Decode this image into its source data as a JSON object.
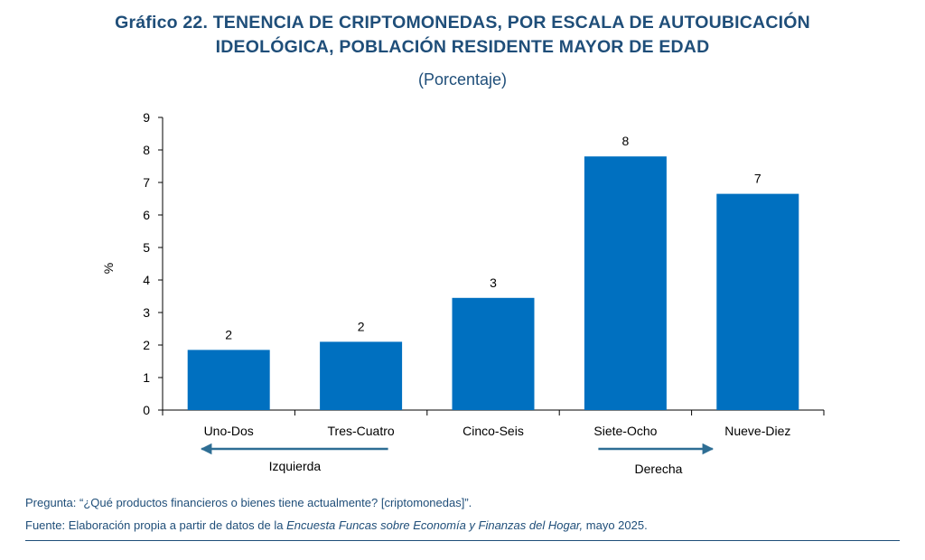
{
  "header": {
    "title_line1": "Gráfico 22. TENENCIA DE CRIPTOMONEDAS, POR ESCALA DE AUTOUBICACIÓN",
    "title_line2": "IDEOLÓGICA, POBLACIÓN RESIDENTE MAYOR DE EDAD",
    "subtitle": "(Porcentaje)"
  },
  "chart_data": {
    "type": "bar",
    "categories": [
      "Uno-Dos",
      "Tres-Cuatro",
      "Cinco-Seis",
      "Siete-Ocho",
      "Nueve-Diez"
    ],
    "values": [
      1.85,
      2.1,
      3.45,
      7.8,
      6.65
    ],
    "data_labels": [
      "2",
      "2",
      "3",
      "8",
      "7"
    ],
    "ylabel": "%",
    "ylim": [
      0,
      9
    ],
    "yticks": [
      "0",
      "1",
      "2",
      "3",
      "4",
      "5",
      "6",
      "7",
      "8",
      "9"
    ],
    "grid": false,
    "bar_color": "#0070c0",
    "annotations": {
      "left_arrow_label": "Izquierda",
      "right_arrow_label": "Derecha"
    }
  },
  "notes": {
    "question": "Pregunta: “¿Qué productos financieros o bienes tiene actualmente? [criptomonedas]”.",
    "source_prefix": "Fuente: Elaboración propia a partir de datos de la ",
    "source_italic": "Encuesta Funcas sobre Economía y Finanzas del Hogar,",
    "source_suffix": " mayo 2025."
  },
  "colors": {
    "title": "#1f4e79",
    "bar": "#0070c0",
    "arrow": "#2e6e94",
    "axis": "#000000"
  }
}
